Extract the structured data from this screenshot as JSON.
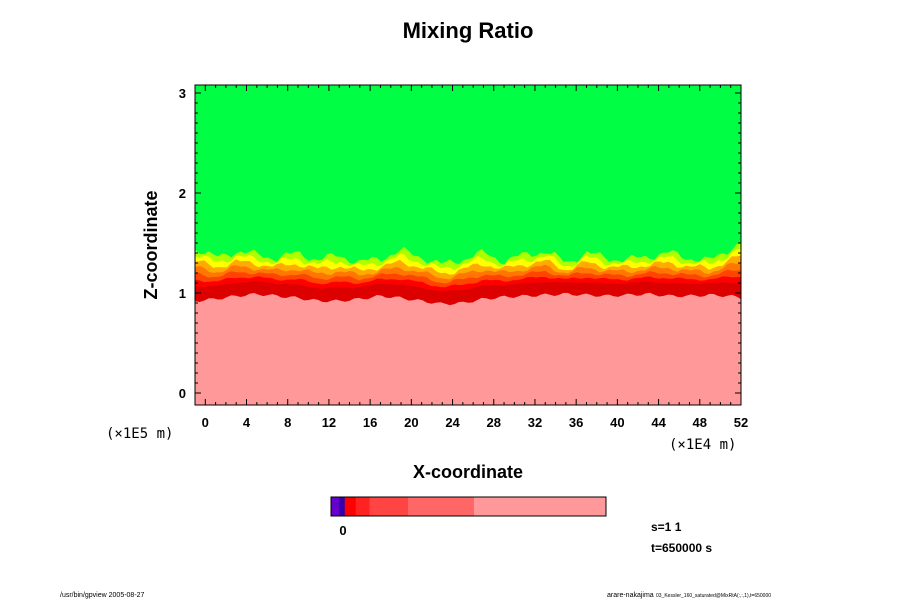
{
  "chart_data": {
    "type": "heatmap",
    "title": "Mixing Ratio",
    "xlabel": "X-coordinate",
    "ylabel": "Z-coordinate",
    "x_unit": "(×1E4 m)",
    "y_unit": "(×1E5 m)",
    "xlim": [
      -1,
      52
    ],
    "ylim": [
      -0.12,
      3.08
    ],
    "x_ticks": [
      "0",
      "4",
      "8",
      "12",
      "16",
      "20",
      "24",
      "28",
      "32",
      "36",
      "40",
      "44",
      "48",
      "52"
    ],
    "y_ticks": [
      "0",
      "1",
      "2",
      "3"
    ],
    "colorbar_label": "0",
    "regions": {
      "upper": {
        "value": "green",
        "color": "#00ff44"
      },
      "transition": [
        "#aaff00",
        "#ffff00",
        "#ffaa00",
        "#ff7700",
        "#ff4400",
        "#ff0000",
        "#dd0000"
      ],
      "lower": {
        "value": "pink",
        "color": "#ff9999"
      }
    },
    "interface_profile": {
      "x": [
        -1,
        1,
        3,
        5,
        7,
        9,
        11,
        13,
        15,
        17,
        19,
        21,
        23,
        25,
        27,
        29,
        31,
        33,
        35,
        37,
        39,
        41,
        43,
        45,
        47,
        49,
        51,
        52
      ],
      "z": [
        1.0,
        1.02,
        1.05,
        1.07,
        1.05,
        1.03,
        1.0,
        1.0,
        1.02,
        1.05,
        1.03,
        1.0,
        0.97,
        0.98,
        1.02,
        1.04,
        1.05,
        1.06,
        1.07,
        1.06,
        1.05,
        1.06,
        1.07,
        1.05,
        1.05,
        1.06,
        1.05,
        1.03
      ]
    },
    "top_profile": {
      "x": [
        -1,
        1,
        3,
        5,
        7,
        9,
        11,
        13,
        15,
        17,
        19,
        21,
        23,
        25,
        27,
        29,
        31,
        33,
        35,
        37,
        39,
        41,
        43,
        45,
        47,
        49,
        51,
        52
      ],
      "z": [
        1.45,
        1.35,
        1.42,
        1.38,
        1.35,
        1.4,
        1.33,
        1.38,
        1.3,
        1.35,
        1.42,
        1.36,
        1.28,
        1.34,
        1.4,
        1.32,
        1.38,
        1.42,
        1.3,
        1.4,
        1.35,
        1.33,
        1.37,
        1.4,
        1.35,
        1.32,
        1.45,
        1.5
      ]
    },
    "colorbar": [
      {
        "from": 0.0,
        "to": 0.03,
        "color": "#6600cc"
      },
      {
        "from": 0.03,
        "to": 0.05,
        "color": "#3300aa"
      },
      {
        "from": 0.05,
        "to": 0.09,
        "color": "#ff0000"
      },
      {
        "from": 0.09,
        "to": 0.14,
        "color": "#ff2222"
      },
      {
        "from": 0.14,
        "to": 0.28,
        "color": "#ff4444"
      },
      {
        "from": 0.28,
        "to": 0.52,
        "color": "#ff6666"
      },
      {
        "from": 0.52,
        "to": 1.0,
        "color": "#ff9999"
      }
    ]
  },
  "info": {
    "s_label": "s=1 1",
    "t_label": "t=650000 s"
  },
  "footer": {
    "left": "/usr/bin/gpview 2005-08-27",
    "right_name": "arare-nakajima",
    "right_path": "03_Kessler_160_saturated@MixRtA(:,:,1),t=650000"
  }
}
